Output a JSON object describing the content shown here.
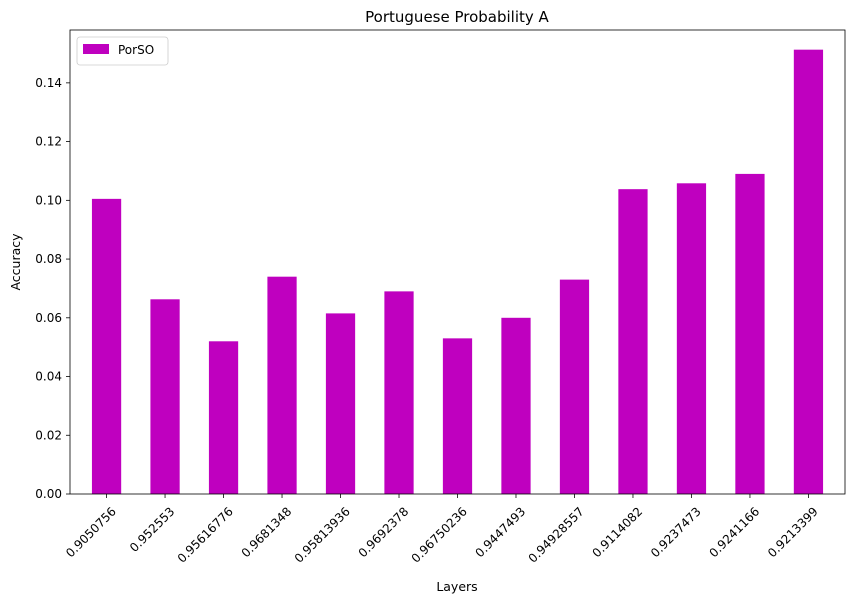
{
  "chart_data": {
    "type": "bar",
    "title": "Portuguese Probability A",
    "xlabel": "Layers",
    "ylabel": "Accuracy",
    "categories": [
      "0.9050756",
      "0.952553",
      "0.95616776",
      "0.9681348",
      "0.95813936",
      "0.9692378",
      "0.96750236",
      "0.9447493",
      "0.94928557",
      "0.9114082",
      "0.9237473",
      "0.9241166",
      "0.9213399"
    ],
    "series": [
      {
        "name": "PorSO",
        "color": "#bf00bf",
        "values": [
          0.1005,
          0.0663,
          0.052,
          0.074,
          0.0615,
          0.069,
          0.053,
          0.06,
          0.073,
          0.1038,
          0.1058,
          0.109,
          0.1513
        ]
      }
    ],
    "ylim": [
      0,
      0.158
    ],
    "yticks": [
      "0.00",
      "0.02",
      "0.04",
      "0.06",
      "0.08",
      "0.10",
      "0.12",
      "0.14"
    ],
    "grid": false,
    "legend_position": "top-left"
  }
}
